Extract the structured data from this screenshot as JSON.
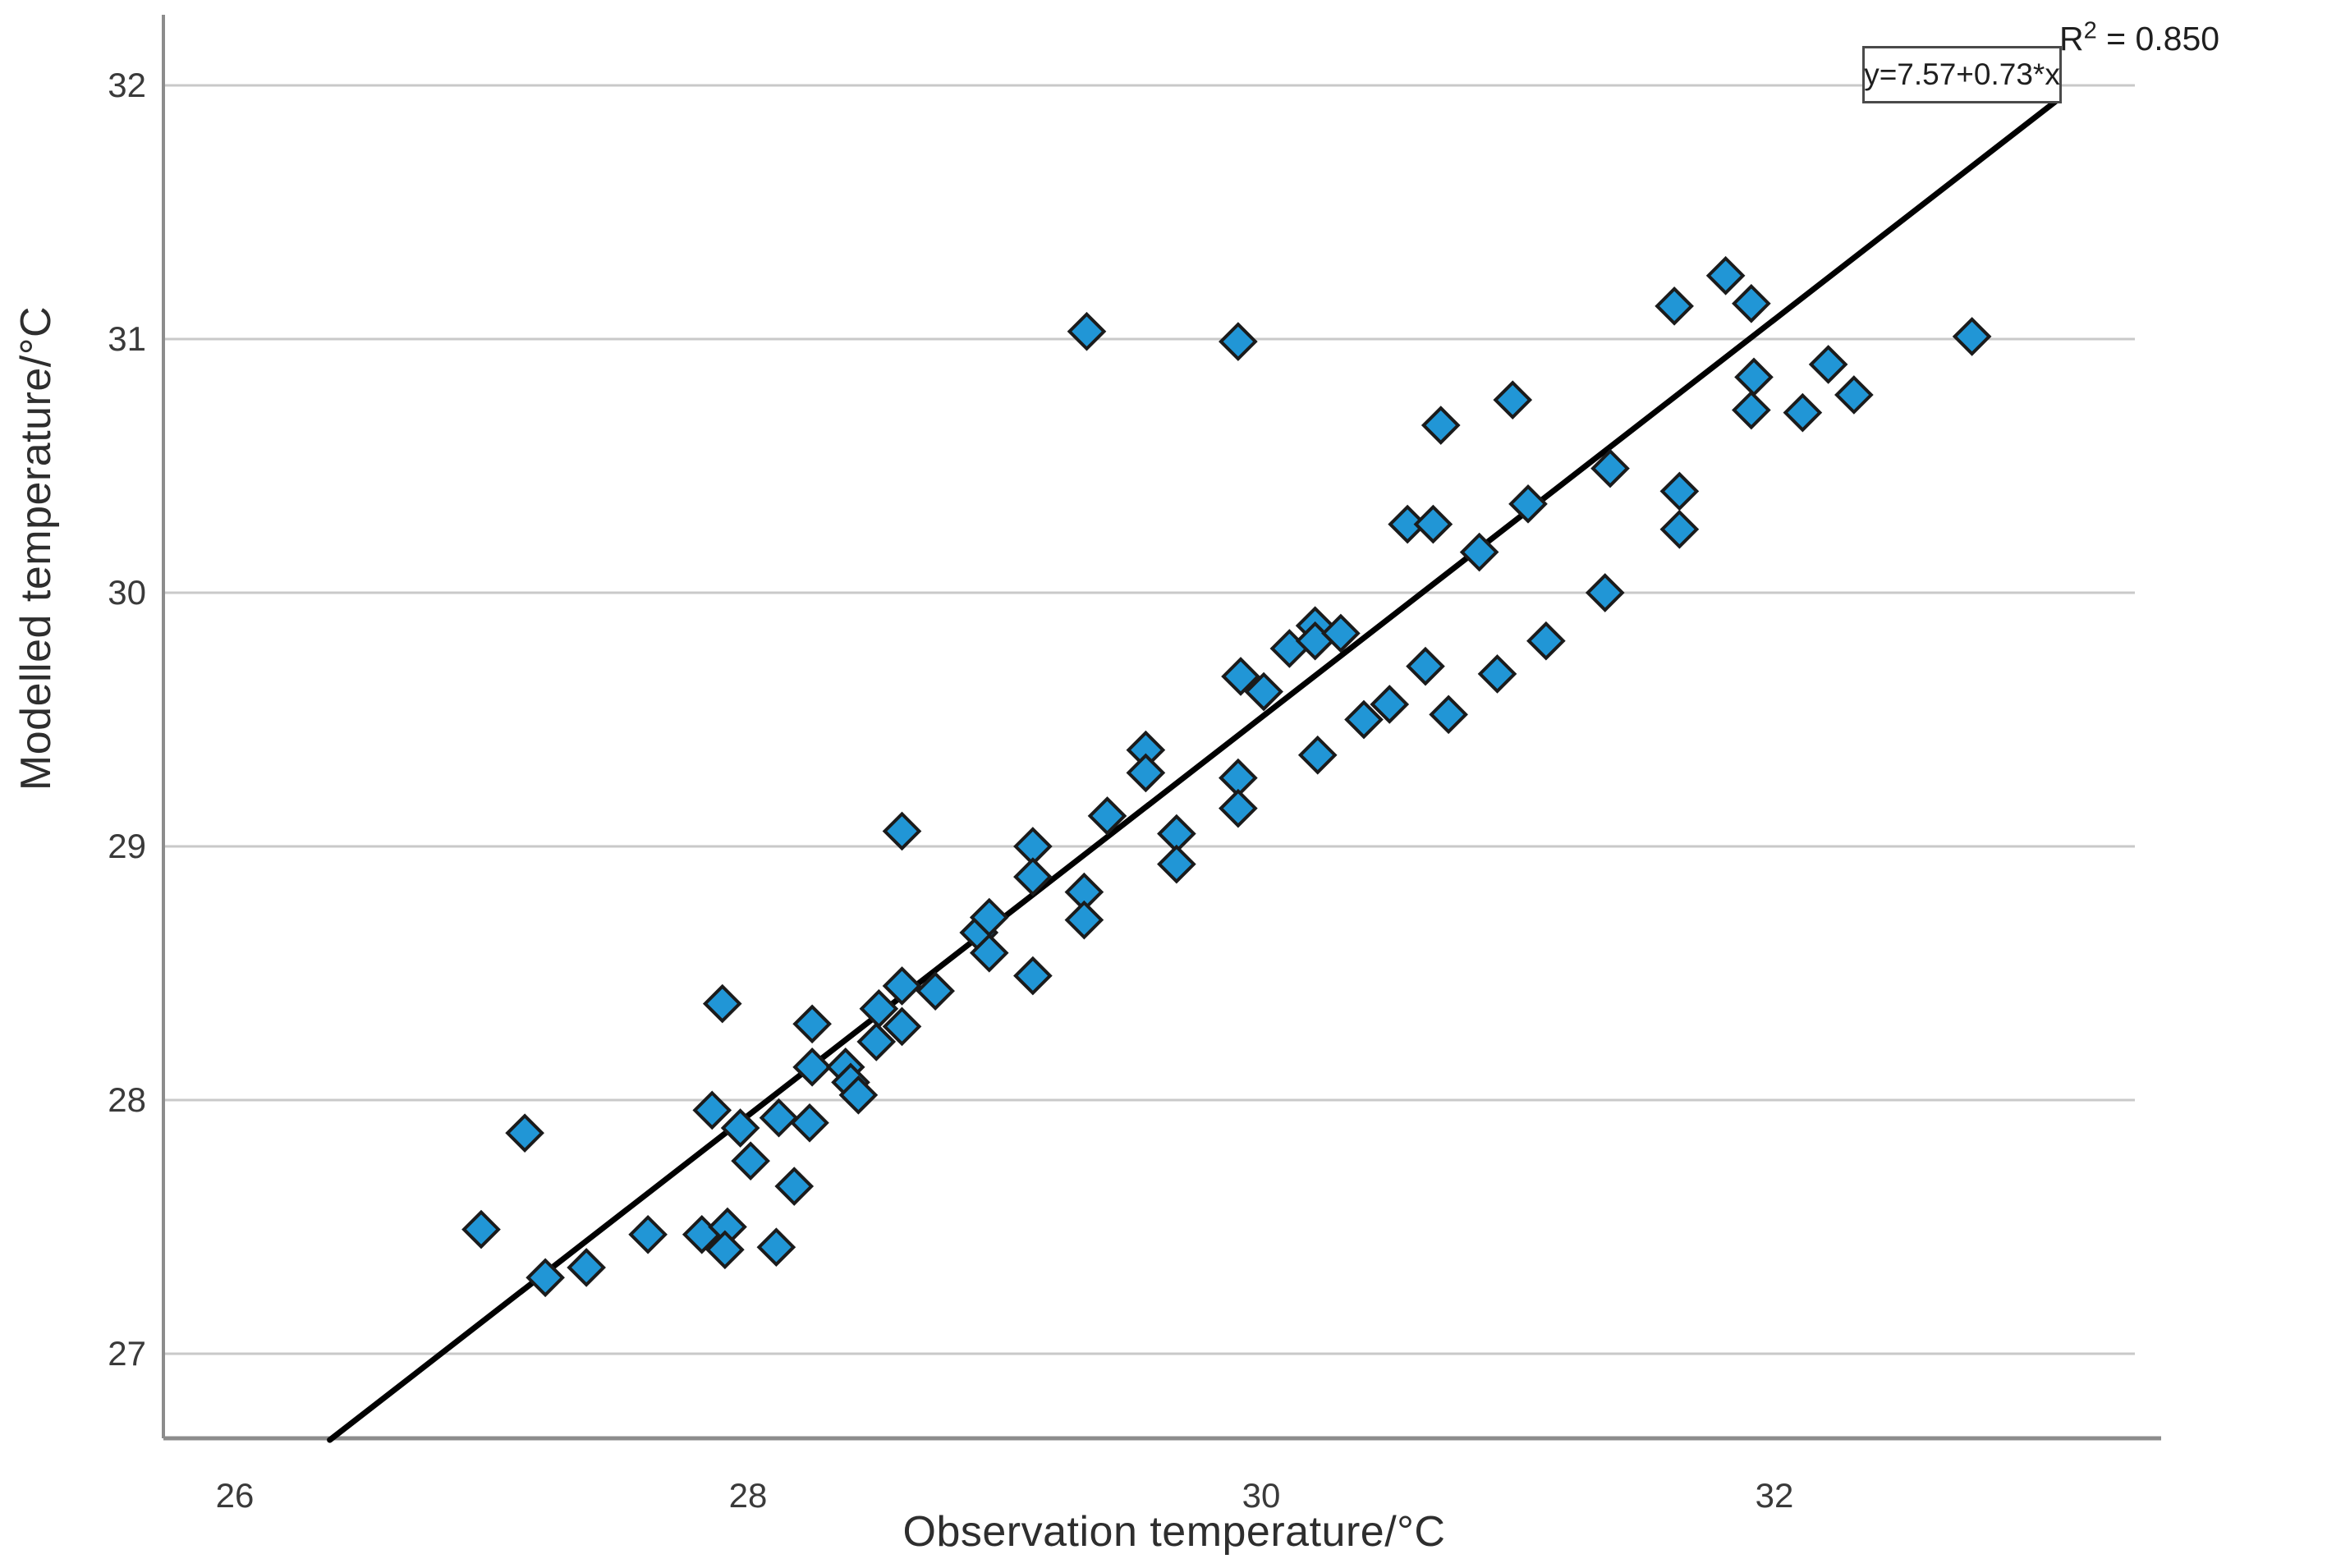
{
  "chart_data": {
    "type": "scatter",
    "title": "",
    "xlabel": "Observation temperature/°C",
    "ylabel": "Modelled temperature/°C",
    "x_ticks": [
      26,
      28,
      30,
      32
    ],
    "y_ticks": [
      27,
      28,
      29,
      30,
      31,
      32
    ],
    "xlim": [
      25.7,
      33.4
    ],
    "ylim": [
      26.6,
      32.3
    ],
    "grid": true,
    "legend_position": "none",
    "annotations": {
      "equation": "y=7.57+0.73*x",
      "r_squared_text": "R² = 0.850",
      "r_squared": 0.85
    },
    "regression": {
      "slope": 0.73,
      "intercept": 7.57,
      "line_draw": {
        "x1": 26.37,
        "y1": 26.66,
        "x2": 33.1,
        "y2": 31.94
      }
    },
    "series": [
      {
        "name": "temperature-points",
        "marker": "diamond",
        "points": [
          [
            26.96,
            27.49
          ],
          [
            27.13,
            27.87
          ],
          [
            27.21,
            27.3
          ],
          [
            27.37,
            27.34
          ],
          [
            27.61,
            27.47
          ],
          [
            27.82,
            27.47
          ],
          [
            27.92,
            27.5
          ],
          [
            27.91,
            27.41
          ],
          [
            28.11,
            27.42
          ],
          [
            28.01,
            27.76
          ],
          [
            28.18,
            27.66
          ],
          [
            27.86,
            27.96
          ],
          [
            27.97,
            27.89
          ],
          [
            28.12,
            27.93
          ],
          [
            28.24,
            27.91
          ],
          [
            27.9,
            28.38
          ],
          [
            28.25,
            28.3
          ],
          [
            28.25,
            28.13
          ],
          [
            28.38,
            28.13
          ],
          [
            28.4,
            28.07
          ],
          [
            28.43,
            28.02
          ],
          [
            28.51,
            28.36
          ],
          [
            28.5,
            28.23
          ],
          [
            28.6,
            28.29
          ],
          [
            28.6,
            28.45
          ],
          [
            29.11,
            28.49
          ],
          [
            28.9,
            28.66
          ],
          [
            28.94,
            28.72
          ],
          [
            28.94,
            28.58
          ],
          [
            28.73,
            28.43
          ],
          [
            29.11,
            29.0
          ],
          [
            29.11,
            28.88
          ],
          [
            29.31,
            28.82
          ],
          [
            29.31,
            28.71
          ],
          [
            28.6,
            29.06
          ],
          [
            29.4,
            29.12
          ],
          [
            29.55,
            29.38
          ],
          [
            29.55,
            29.29
          ],
          [
            29.67,
            29.05
          ],
          [
            29.67,
            28.93
          ],
          [
            29.91,
            29.27
          ],
          [
            29.91,
            29.15
          ],
          [
            30.22,
            29.36
          ],
          [
            29.92,
            29.67
          ],
          [
            30.01,
            29.61
          ],
          [
            30.11,
            29.78
          ],
          [
            30.21,
            29.87
          ],
          [
            30.21,
            29.81
          ],
          [
            30.31,
            29.84
          ],
          [
            30.4,
            29.5
          ],
          [
            30.5,
            29.56
          ],
          [
            30.64,
            29.71
          ],
          [
            30.73,
            29.52
          ],
          [
            30.92,
            29.68
          ],
          [
            31.11,
            29.81
          ],
          [
            30.57,
            30.27
          ],
          [
            30.67,
            30.27
          ],
          [
            30.85,
            30.16
          ],
          [
            31.04,
            30.35
          ],
          [
            30.7,
            30.66
          ],
          [
            30.98,
            30.76
          ],
          [
            31.36,
            30.49
          ],
          [
            31.63,
            30.4
          ],
          [
            31.63,
            30.25
          ],
          [
            31.34,
            30.0
          ],
          [
            31.61,
            31.13
          ],
          [
            31.81,
            31.25
          ],
          [
            31.91,
            31.14
          ],
          [
            31.92,
            30.85
          ],
          [
            31.91,
            30.72
          ],
          [
            32.11,
            30.71
          ],
          [
            32.21,
            30.9
          ],
          [
            32.31,
            30.78
          ],
          [
            29.32,
            31.03
          ],
          [
            29.91,
            30.99
          ],
          [
            32.77,
            31.01
          ]
        ]
      }
    ]
  },
  "labels": {
    "equation": "y=7.57+0.73*x",
    "r2_base": "R",
    "r2_sup": "2",
    "r2_rest": " = 0.850"
  },
  "style": {
    "marker_fill": "#2196d6",
    "marker_stroke": "#1b1b1b",
    "regression_line_color": "#000000",
    "grid_color": "#c9c9c9",
    "axis_color": "#8c8c8c",
    "tick_text_color": "#3a3a3a"
  }
}
